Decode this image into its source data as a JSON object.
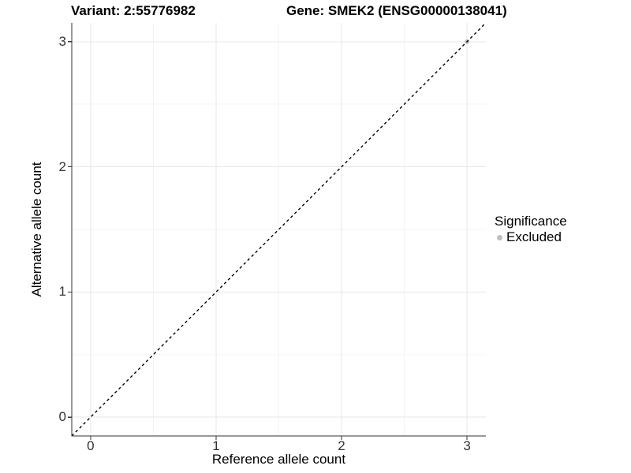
{
  "chart_data": {
    "type": "scatter",
    "title_left": "Variant: 2:55776982",
    "title_right": "Gene: SMEK2 (ENSG00000138041)",
    "xlabel": "Reference allele count",
    "ylabel": "Alternative allele count",
    "legend_title": "Significance",
    "legend_position": "right",
    "xlim": [
      -0.15,
      3.15
    ],
    "ylim": [
      -0.15,
      3.15
    ],
    "x_ticks": [
      0,
      1,
      2,
      3
    ],
    "y_ticks": [
      0,
      1,
      2,
      3
    ],
    "x_minor_ticks": [
      0.5,
      1.5,
      2.5
    ],
    "y_minor_ticks": [
      0.5,
      1.5,
      2.5
    ],
    "grid": true,
    "reference_line": {
      "type": "identity",
      "slope": 1,
      "intercept": 0,
      "style": "dashed",
      "color": "#000000"
    },
    "series": [
      {
        "name": "Excluded",
        "color": "#bebebe",
        "points": [
          {
            "x": 3,
            "y": 3
          }
        ]
      }
    ],
    "colors": {
      "background": "#ffffff",
      "major_grid": "#e7e7e7",
      "minor_grid": "#f3f3f3",
      "axis_line": "#333333",
      "tick_mark": "#333333",
      "tick_text": "#333333",
      "title_text": "#000000"
    }
  }
}
